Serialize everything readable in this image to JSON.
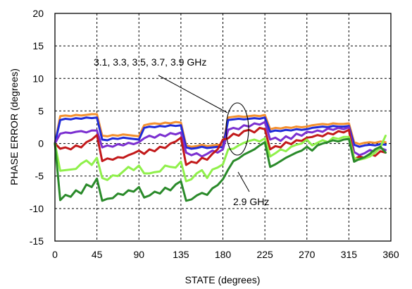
{
  "chart_data": {
    "type": "line",
    "xlabel": "STATE (degrees)",
    "ylabel": "PHASE ERROR  (degrees)",
    "xlim": [
      0,
      360
    ],
    "ylim": [
      -15,
      20
    ],
    "x_ticks": [
      "0",
      "45",
      "90",
      "135",
      "180",
      "225",
      "270",
      "315",
      "360"
    ],
    "y_ticks": [
      "20",
      "15",
      "10",
      "5",
      "0",
      "-5",
      "-10",
      "-15"
    ],
    "grid": true,
    "x": [
      0,
      5.625,
      11.25,
      16.875,
      22.5,
      28.125,
      33.75,
      39.375,
      45,
      50.625,
      56.25,
      61.875,
      67.5,
      73.125,
      78.75,
      84.375,
      90,
      95.625,
      101.25,
      106.875,
      112.5,
      118.125,
      123.75,
      129.375,
      135,
      140.625,
      146.25,
      151.875,
      157.5,
      163.125,
      168.75,
      174.375,
      180,
      185.625,
      191.25,
      196.875,
      202.5,
      208.125,
      213.75,
      219.375,
      225,
      230.625,
      236.25,
      241.875,
      247.5,
      253.125,
      258.75,
      264.375,
      270,
      275.625,
      281.25,
      286.875,
      292.5,
      298.125,
      303.75,
      309.375,
      315,
      320.625,
      326.25,
      331.875,
      337.5,
      343.125,
      348.75,
      354.375
    ],
    "series": [
      {
        "color": "#f4902f",
        "values": [
          0,
          4.2,
          4.3,
          4.2,
          4.4,
          4.3,
          4.4,
          4.5,
          4.5,
          1.2,
          1.1,
          1.3,
          1.2,
          1.4,
          1.3,
          1.2,
          1.1,
          2.8,
          3.0,
          3.1,
          3.0,
          3.2,
          3.1,
          3.3,
          3.2,
          -0.3,
          -0.5,
          -0.4,
          -0.2,
          -0.4,
          -0.3,
          -0.2,
          -0.3,
          4.0,
          4.1,
          4.2,
          4.1,
          4.2,
          4.3,
          4.2,
          4.4,
          2.2,
          2.4,
          2.3,
          2.5,
          2.4,
          2.6,
          2.5,
          2.6,
          2.8,
          2.9,
          3.0,
          2.9,
          3.1,
          3.0,
          3.0,
          3.1,
          0.2,
          -0.1,
          0.1,
          0.2,
          0.1,
          0.3,
          0.2
        ]
      },
      {
        "color": "#1f2bd8",
        "values": [
          0,
          3.6,
          3.8,
          3.7,
          3.9,
          3.8,
          4.0,
          3.9,
          4.0,
          0.6,
          0.5,
          0.8,
          0.7,
          0.9,
          0.8,
          0.7,
          0.6,
          2.4,
          2.6,
          2.5,
          2.7,
          2.6,
          2.8,
          2.7,
          2.8,
          -0.6,
          -0.8,
          -0.7,
          -0.5,
          -0.7,
          -0.6,
          -0.5,
          -0.6,
          3.6,
          3.7,
          3.8,
          3.7,
          3.8,
          3.9,
          3.8,
          4.0,
          1.8,
          2.0,
          1.9,
          2.1,
          2.0,
          2.2,
          2.1,
          2.2,
          2.4,
          2.5,
          2.6,
          2.5,
          2.7,
          2.6,
          2.6,
          2.7,
          -0.2,
          -0.5,
          -0.3,
          -0.2,
          -0.3,
          -0.1,
          -0.2
        ]
      },
      {
        "color": "#7b2fd0",
        "values": [
          0,
          1.5,
          1.7,
          1.6,
          1.8,
          1.9,
          1.7,
          2.0,
          2.0,
          -0.6,
          -0.3,
          -0.5,
          -0.1,
          -0.3,
          0.1,
          -0.1,
          0.2,
          0.8,
          1.2,
          0.9,
          1.4,
          1.1,
          1.6,
          1.4,
          1.7,
          -1.4,
          -1.8,
          -1.5,
          -2.0,
          -1.6,
          -1.1,
          -1.4,
          -0.9,
          2.1,
          2.4,
          2.2,
          2.8,
          2.6,
          3.1,
          2.9,
          3.3,
          0.6,
          0.9,
          0.4,
          1.1,
          0.7,
          1.5,
          1.2,
          1.8,
          1.7,
          2.0,
          1.8,
          2.3,
          2.1,
          2.4,
          2.2,
          2.5,
          -1.3,
          -1.8,
          -1.5,
          -1.0,
          -1.3,
          -0.7,
          -1.0
        ]
      },
      {
        "color": "#c2191a",
        "values": [
          0,
          -0.8,
          -0.6,
          -0.9,
          -0.3,
          -0.6,
          0.2,
          0.6,
          1.3,
          -2.7,
          -2.3,
          -2.5,
          -2.1,
          -2.2,
          -1.8,
          -1.5,
          -1.1,
          -1.6,
          -0.9,
          -1.2,
          -0.5,
          -0.7,
          0.0,
          0.3,
          0.9,
          -3.3,
          -2.8,
          -3.0,
          -2.2,
          -2.5,
          -1.6,
          -0.9,
          0.6,
          0.8,
          1.5,
          1.2,
          1.9,
          2.1,
          1.7,
          2.4,
          2.2,
          -0.9,
          -0.4,
          -0.6,
          0.2,
          -0.1,
          0.5,
          0.4,
          0.9,
          1.0,
          1.3,
          1.1,
          1.6,
          1.4,
          1.9,
          1.7,
          2.1,
          -2.4,
          -2.0,
          -2.2,
          -1.6,
          -1.9,
          -1.2,
          -1.4
        ]
      },
      {
        "color": "#8ff04a",
        "name": "",
        "values": [
          0,
          -4.2,
          -4.1,
          -4.0,
          -3.9,
          -3.1,
          -2.6,
          -3.3,
          -2.2,
          -5.3,
          -5.6,
          -4.9,
          -5.0,
          -4.3,
          -3.6,
          -4.1,
          -3.4,
          -4.6,
          -4.6,
          -4.4,
          -4.3,
          -3.4,
          -3.6,
          -3.7,
          -2.8,
          -5.8,
          -5.5,
          -4.6,
          -4.1,
          -5.3,
          -4.0,
          -3.7,
          -3.2,
          -0.9,
          -0.8,
          -0.3,
          0.1,
          0.4,
          0.6,
          0.3,
          0.8,
          -2.0,
          -1.5,
          -0.9,
          -1.2,
          -0.5,
          -0.2,
          0.0,
          0.6,
          -0.3,
          0.1,
          0.5,
          0.2,
          0.9,
          0.7,
          1.0,
          1.0,
          -2.2,
          -2.5,
          -2.3,
          -2.0,
          -1.4,
          -0.6,
          1.2
        ]
      },
      {
        "color": "#2a8a2a",
        "values": [
          0,
          -8.7,
          -7.9,
          -8.2,
          -7.2,
          -7.7,
          -6.3,
          -6.7,
          -5.4,
          -8.8,
          -8.5,
          -8.4,
          -7.7,
          -7.9,
          -7.2,
          -7.4,
          -6.7,
          -8.3,
          -8.0,
          -7.4,
          -7.7,
          -6.8,
          -7.2,
          -6.3,
          -5.8,
          -8.8,
          -8.6,
          -8.0,
          -7.6,
          -7.9,
          -6.9,
          -6.4,
          -5.5,
          -4.0,
          -2.7,
          -2.3,
          -1.7,
          -1.3,
          -0.9,
          -0.3,
          0.2,
          -3.6,
          -3.2,
          -2.7,
          -2.2,
          -1.8,
          -1.4,
          -1.1,
          -0.5,
          -1.1,
          -0.3,
          0.0,
          0.2,
          0.5,
          0.3,
          0.6,
          0.7,
          -2.8,
          -2.4,
          -2.1,
          -1.6,
          -0.9,
          -0.5,
          -1.4
        ]
      }
    ],
    "annotations": [
      {
        "text": "3.1, 3.3, 3.5, 3.7, 3.9  GHz"
      },
      {
        "text": "2.9 GHz"
      }
    ]
  }
}
